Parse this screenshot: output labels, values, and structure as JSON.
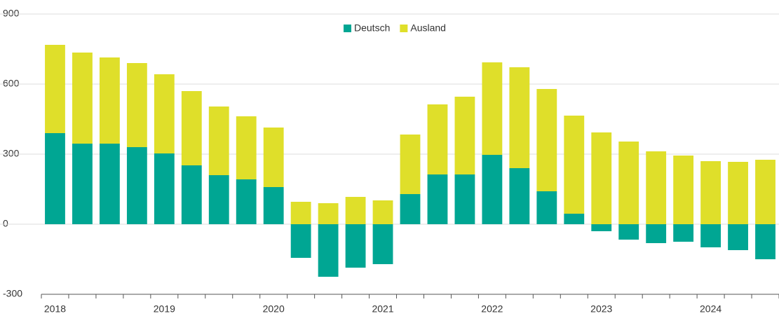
{
  "chart_data": {
    "type": "bar",
    "stacked": true,
    "categories": [
      "2018",
      null,
      null,
      null,
      "2019",
      null,
      null,
      null,
      "2020",
      null,
      null,
      null,
      "2021",
      null,
      null,
      null,
      "2022",
      null,
      null,
      null,
      "2023",
      null,
      null,
      null,
      "2024",
      null,
      null
    ],
    "series": [
      {
        "name": "Deutsch",
        "color": "#00a693",
        "values": [
          390,
          345,
          345,
          330,
          303,
          252,
          210,
          192,
          159,
          -144,
          -225,
          -186,
          -171,
          129,
          213,
          213,
          297,
          240,
          141,
          45,
          -30,
          -66,
          -81,
          -75,
          -99,
          -111,
          -150
        ]
      },
      {
        "name": "Ausland",
        "color": "#dfdf2a",
        "values": [
          378,
          390,
          369,
          360,
          339,
          318,
          294,
          270,
          255,
          96,
          90,
          117,
          102,
          255,
          300,
          333,
          396,
          432,
          438,
          420,
          393,
          354,
          312,
          294,
          270,
          267,
          276
        ]
      }
    ],
    "ylim": [
      -300,
      900
    ],
    "yticks": [
      -300,
      0,
      300,
      600,
      900
    ],
    "grid": true,
    "legend": "top"
  }
}
